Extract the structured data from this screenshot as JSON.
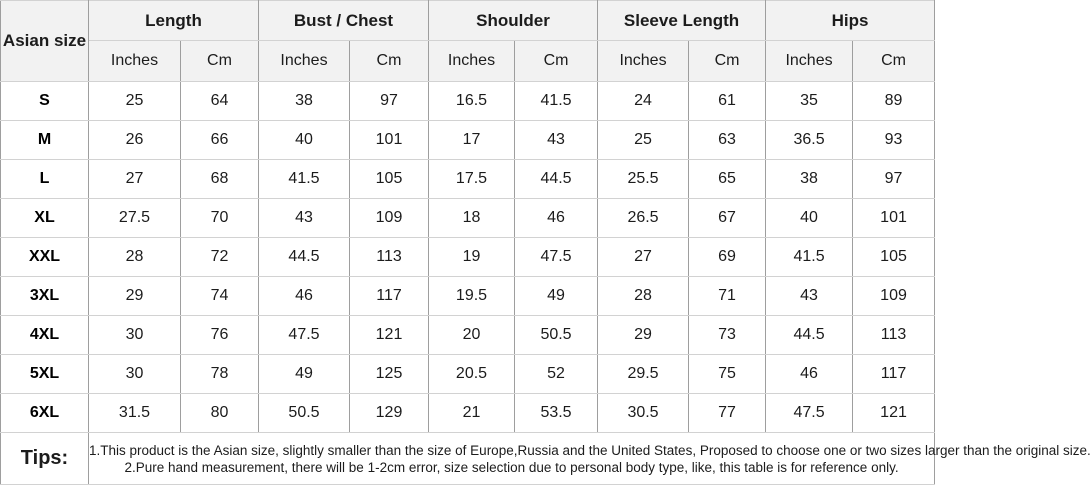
{
  "chart_data": {
    "type": "table",
    "corner_header": "Asian size",
    "column_groups": [
      "Length",
      "Bust / Chest",
      "Shoulder",
      "Sleeve Length",
      "Hips"
    ],
    "unit_columns": [
      "Inches",
      "Cm"
    ],
    "sizes": [
      "S",
      "M",
      "L",
      "XL",
      "XXL",
      "3XL",
      "4XL",
      "5XL",
      "6XL"
    ],
    "rows": [
      [
        25,
        64,
        38,
        97,
        16.5,
        41.5,
        24,
        61,
        35,
        89
      ],
      [
        26,
        66,
        40,
        101,
        17,
        43,
        25,
        63,
        36.5,
        93
      ],
      [
        27,
        68,
        41.5,
        105,
        17.5,
        44.5,
        25.5,
        65,
        38,
        97
      ],
      [
        27.5,
        70,
        43,
        109,
        18,
        46,
        26.5,
        67,
        40,
        101
      ],
      [
        28,
        72,
        44.5,
        113,
        19,
        47.5,
        27,
        69,
        41.5,
        105
      ],
      [
        29,
        74,
        46,
        117,
        19.5,
        49,
        28,
        71,
        43,
        109
      ],
      [
        30,
        76,
        47.5,
        121,
        20,
        50.5,
        29,
        73,
        44.5,
        113
      ],
      [
        30,
        78,
        49,
        125,
        20.5,
        52,
        29.5,
        75,
        46,
        117
      ],
      [
        31.5,
        80,
        50.5,
        129,
        21,
        53.5,
        30.5,
        77,
        47.5,
        121
      ]
    ]
  },
  "tips": {
    "label": "Tips:",
    "items": [
      "1.This product is the Asian size, slightly smaller than the size of Europe,Russia and the United States, Proposed to choose one or two sizes larger than the original size.",
      "2.Pure hand measurement, there will be 1-2cm error, size selection due to personal body type, like, this table is for reference only."
    ]
  },
  "colors": {
    "accent_red": "#ff0000",
    "header_background": "#f2f2f2",
    "vertical_border": "#9e9e9e",
    "horizontal_border": "#d2d2d2"
  }
}
